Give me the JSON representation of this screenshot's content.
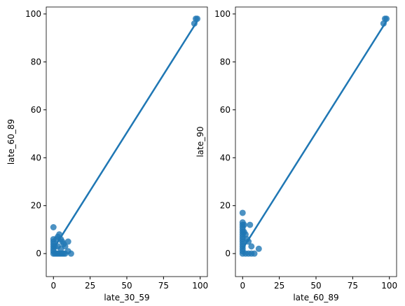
{
  "chart_data": [
    {
      "type": "scatter",
      "xlabel": "late_30_59",
      "ylabel": "late_60_89",
      "color": "#1f77b4",
      "xlim": [
        -4.9,
        104.9
      ],
      "ylim": [
        -9.6,
        102.9
      ],
      "xticks": [
        0,
        25,
        50,
        75,
        100
      ],
      "yticks": [
        0,
        20,
        40,
        60,
        80,
        100
      ],
      "x": [
        0,
        0,
        0,
        0,
        0,
        0,
        0,
        0,
        1,
        2,
        3,
        4,
        5,
        6,
        7,
        8,
        10,
        12,
        2,
        3,
        4,
        5,
        6,
        7,
        8,
        10,
        1,
        3,
        5,
        96,
        98,
        97
      ],
      "y": [
        11,
        6,
        5,
        4,
        3,
        2,
        1,
        0,
        0,
        0,
        0,
        0,
        0,
        0,
        0,
        0,
        1,
        0,
        6,
        7,
        8,
        6,
        5,
        4,
        3,
        5,
        3,
        3,
        2,
        96,
        98,
        98
      ],
      "regression_line": {
        "x": [
          0,
          98
        ],
        "y": [
          2,
          97
        ]
      }
    },
    {
      "type": "scatter",
      "xlabel": "late_60_89",
      "ylabel": "late_90",
      "color": "#1f77b4",
      "xlim": [
        -4.9,
        104.9
      ],
      "ylim": [
        -9.6,
        102.9
      ],
      "xticks": [
        0,
        25,
        50,
        75,
        100
      ],
      "yticks": [
        0,
        20,
        40,
        60,
        80,
        100
      ],
      "x": [
        0,
        0,
        0,
        0,
        0,
        0,
        0,
        0,
        0,
        0,
        0,
        0,
        0,
        0,
        0,
        1,
        1,
        2,
        3,
        4,
        5,
        6,
        11,
        2,
        4,
        6,
        8,
        96,
        98,
        97
      ],
      "y": [
        17,
        13,
        12,
        11,
        10,
        9,
        8,
        7,
        6,
        5,
        4,
        3,
        2,
        1,
        0,
        12,
        9,
        8,
        6,
        5,
        12,
        3,
        2,
        0,
        0,
        0,
        0,
        96,
        98,
        98
      ],
      "regression_line": {
        "x": [
          0,
          98
        ],
        "y": [
          2,
          97
        ]
      }
    }
  ]
}
